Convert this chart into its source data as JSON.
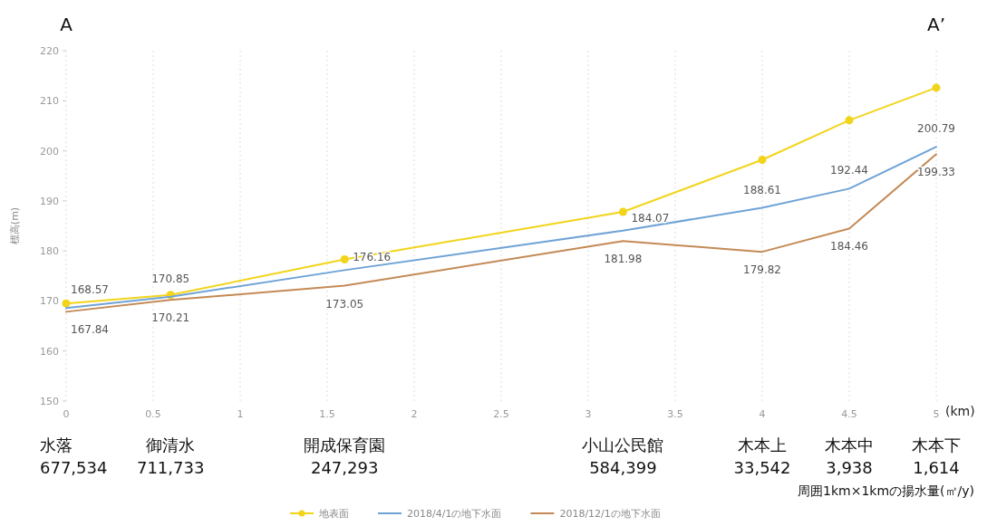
{
  "chart_data": {
    "type": "line",
    "xlabel": "(km)",
    "ylabel": "標高(m)",
    "xlim": [
      0,
      5
    ],
    "xticks": [
      0,
      0.5,
      1,
      1.5,
      2,
      2.5,
      3,
      3.5,
      4,
      4.5,
      5
    ],
    "ylim": [
      150,
      220
    ],
    "yticks": [
      150,
      160,
      170,
      180,
      190,
      200,
      210,
      220
    ],
    "grid": "x",
    "legend": "bottom",
    "line_style": "solid",
    "x": [
      0,
      0.6,
      1.6,
      3.2,
      4,
      4.5,
      5
    ],
    "series": [
      {
        "name": "地表面",
        "color": "#f2d41a",
        "marker": "circle",
        "values": [
          169.5,
          171.2,
          178.3,
          187.8,
          198.2,
          206.1,
          212.6
        ]
      },
      {
        "name": "2018/4/1の地下水面",
        "color": "#6fa3d6",
        "marker": "none",
        "values": [
          168.57,
          170.85,
          176.16,
          184.07,
          188.61,
          192.44,
          200.79
        ],
        "value_labels": [
          "168.57",
          "170.85",
          "176.16",
          "184.07",
          "188.61",
          "192.44",
          "200.79"
        ]
      },
      {
        "name": "2018/12/1の地下水面",
        "color": "#c48a55",
        "marker": "none",
        "values": [
          167.84,
          170.21,
          173.05,
          181.98,
          179.82,
          184.46,
          199.33
        ],
        "value_labels": [
          "167.84",
          "170.21",
          "173.05",
          "181.98",
          "179.82",
          "184.46",
          "199.33"
        ]
      }
    ],
    "annotations": [
      "A",
      "A’",
      "水落\n677,534",
      "御清水\n711,733",
      "開成保育園\n247,293",
      "小山公民館\n584,399",
      "木本上\n33,542",
      "木本中\n3,938",
      "木本下\n1,614",
      "周囲1km×1kmの揚水量(㎡/y)"
    ]
  }
}
